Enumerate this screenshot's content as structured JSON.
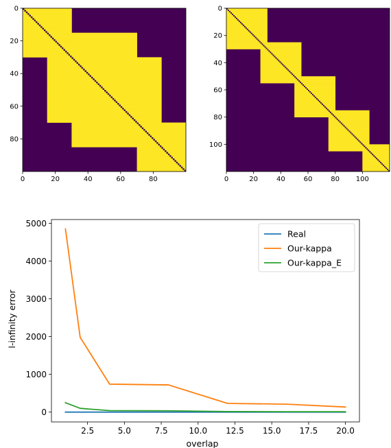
{
  "chart_data": [
    {
      "type": "heatmap",
      "title": "",
      "size": [
        100,
        100
      ],
      "colormap": "viridis",
      "colors": {
        "on": "#fde725",
        "off": "#440154",
        "diagonal": "#3b0f4e"
      },
      "blocks": [
        [
          0,
          15
        ],
        [
          15,
          30
        ],
        [
          30,
          70
        ],
        [
          70,
          85
        ],
        [
          85,
          100
        ]
      ],
      "fill_rule": "cell (i,j) is yellow when |block(i) - block(j)| <= 1",
      "diagonal_off": true,
      "xticks": [
        0,
        20,
        40,
        60,
        80
      ],
      "yticks": [
        0,
        20,
        40,
        60,
        80
      ],
      "xlim": [
        0,
        100
      ],
      "ylim": [
        100,
        0
      ]
    },
    {
      "type": "heatmap",
      "title": "",
      "size": [
        120,
        120
      ],
      "colormap": "viridis",
      "colors": {
        "on": "#fde725",
        "off": "#440154",
        "diagonal": "#3b0f4e"
      },
      "blocks": [
        [
          0,
          30
        ],
        [
          25,
          55
        ],
        [
          50,
          80
        ],
        [
          75,
          105
        ],
        [
          100,
          120
        ]
      ],
      "fill_rule": "cell (i,j) is yellow when i and j lie in a common block",
      "diagonal_off": true,
      "xticks": [
        0,
        20,
        40,
        60,
        80,
        100
      ],
      "yticks": [
        0,
        20,
        40,
        60,
        80,
        100
      ],
      "xlim": [
        0,
        120
      ],
      "ylim": [
        120,
        0
      ]
    },
    {
      "type": "line",
      "title": "",
      "xlabel": "overlap",
      "ylabel": "l-infinity error",
      "xlim": [
        0.05,
        20.95
      ],
      "ylim": [
        -260,
        5100
      ],
      "xticks": [
        2.5,
        5.0,
        7.5,
        10.0,
        12.5,
        15.0,
        17.5,
        20.0
      ],
      "xtick_labels": [
        "2.5",
        "5.0",
        "7.5",
        "10.0",
        "12.5",
        "15.0",
        "17.5",
        "20.0"
      ],
      "yticks": [
        0,
        1000,
        2000,
        3000,
        4000,
        5000
      ],
      "ytick_labels": [
        "0",
        "1000",
        "2000",
        "3000",
        "4000",
        "5000"
      ],
      "grid": false,
      "legend_position": "top-right",
      "x": [
        1,
        2,
        4,
        8,
        12,
        16,
        20
      ],
      "series": [
        {
          "name": "Real",
          "color": "#1f77b4",
          "values": [
            0,
            0,
            0,
            0,
            0,
            0,
            0
          ]
        },
        {
          "name": "Our-kappa",
          "color": "#ff7f0e",
          "values": [
            4850,
            1980,
            740,
            720,
            230,
            210,
            135
          ]
        },
        {
          "name": "Our-kappa_E",
          "color": "#2ca02c",
          "values": [
            250,
            100,
            40,
            35,
            15,
            10,
            10
          ]
        }
      ]
    }
  ]
}
